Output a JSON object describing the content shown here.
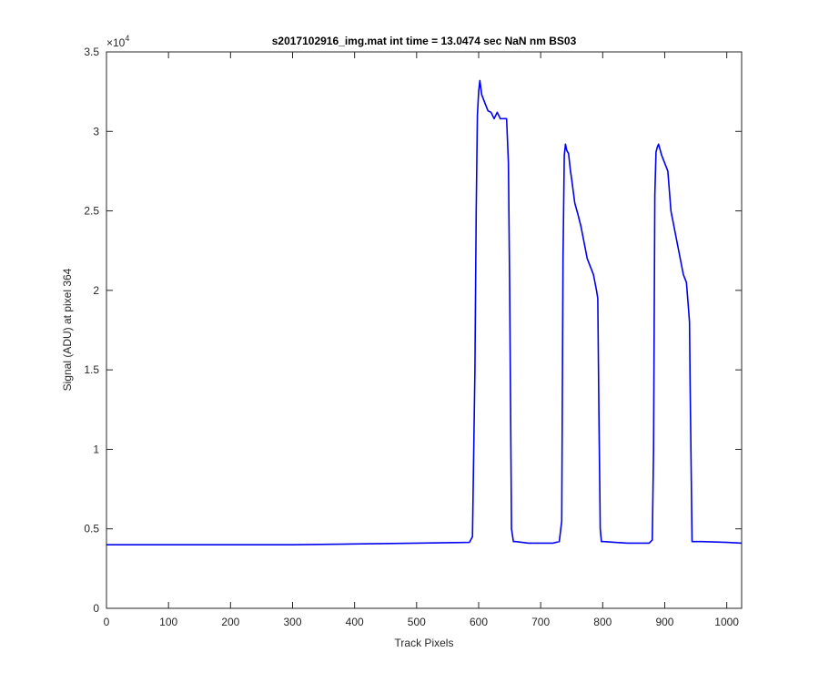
{
  "chart_data": {
    "type": "line",
    "title": "s2017102916_img.mat int time = 13.0474 sec  NaN nm BS03",
    "xlabel": "Track Pixels",
    "ylabel": "Signal (ADU) at pixel 364",
    "xlim": [
      0,
      1024
    ],
    "ylim": [
      0,
      35000
    ],
    "x_ticks": [
      0,
      100,
      200,
      300,
      400,
      500,
      600,
      700,
      800,
      900,
      1000
    ],
    "x_tick_labels": [
      "0",
      "100",
      "200",
      "300",
      "400",
      "500",
      "600",
      "700",
      "800",
      "900",
      "1000"
    ],
    "y_ticks": [
      0,
      5000,
      10000,
      15000,
      20000,
      25000,
      30000,
      35000
    ],
    "y_tick_labels": [
      "0",
      "0.5",
      "1",
      "1.5",
      "2",
      "2.5",
      "3",
      "3.5"
    ],
    "y_exponent_base": "×10",
    "y_exponent_power": "4",
    "grid": false,
    "colors": {
      "series": "#0000ee",
      "axes": "#262626"
    },
    "series": [
      {
        "x": [
          0,
          100,
          200,
          300,
          400,
          500,
          585,
          590,
          594,
          596,
          598,
          600,
          602,
          605,
          610,
          615,
          620,
          625,
          630,
          635,
          640,
          645,
          648,
          650,
          653,
          656,
          660,
          680,
          700,
          720,
          730,
          734,
          736,
          738,
          740,
          742,
          745,
          748,
          750,
          755,
          760,
          765,
          770,
          775,
          780,
          785,
          790,
          792,
          794,
          796,
          798,
          802,
          820,
          840,
          860,
          875,
          880,
          882,
          884,
          886,
          888,
          890,
          895,
          900,
          905,
          910,
          915,
          920,
          925,
          930,
          935,
          937,
          938,
          940,
          941,
          944,
          960,
          1000,
          1024
        ],
        "y": [
          4000,
          4000,
          4000,
          4000,
          4050,
          4100,
          4150,
          4500,
          15000,
          25000,
          31000,
          32500,
          33200,
          32300,
          31800,
          31300,
          31200,
          30800,
          31200,
          30800,
          30800,
          30800,
          28000,
          20000,
          5000,
          4200,
          4200,
          4100,
          4100,
          4100,
          4200,
          5500,
          22000,
          28500,
          29200,
          28800,
          28600,
          27500,
          27000,
          25500,
          24800,
          24000,
          23000,
          22000,
          21500,
          21000,
          20000,
          19500,
          12000,
          5000,
          4200,
          4200,
          4150,
          4100,
          4100,
          4100,
          4300,
          10000,
          26000,
          28700,
          29000,
          29200,
          28500,
          28000,
          27500,
          25000,
          24000,
          23000,
          22000,
          21000,
          20500,
          19500,
          19000,
          18000,
          14000,
          4200,
          4200,
          4150,
          4100
        ]
      }
    ]
  }
}
